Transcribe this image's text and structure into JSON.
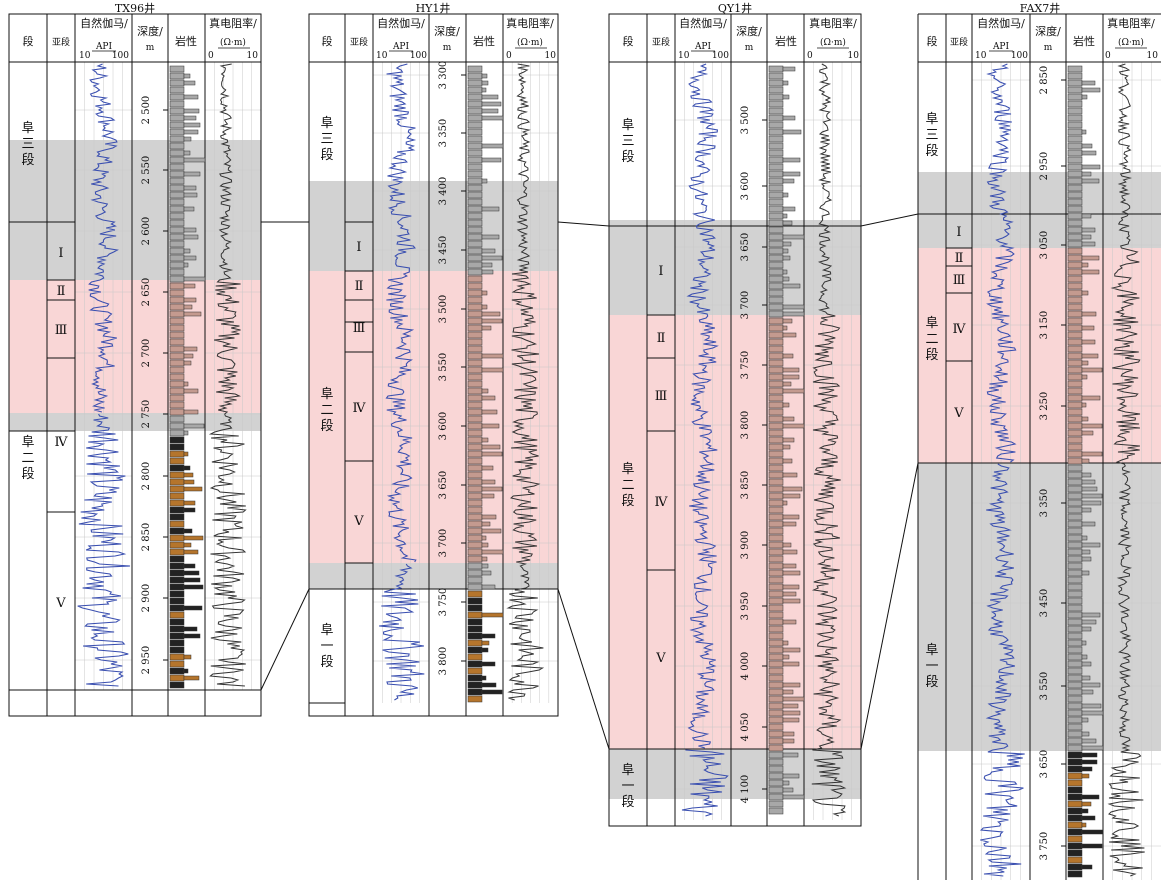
{
  "header": {
    "duan": "段",
    "yaduan": "亚段",
    "gr_title": "自然伽马/",
    "gr_unit": "API",
    "gr_min": "10",
    "gr_max": "100",
    "depth_title": "深度/",
    "depth_unit": "m",
    "lith": "岩性",
    "res_title": "真电阻率/",
    "res_unit": "(Ω·m)",
    "res_min_a": "0",
    "res_min_b": "0",
    "res_max": "10"
  },
  "wells": [
    {
      "name": "TX96井",
      "depth_labels": [
        "2 500",
        "2 550",
        "2 600",
        "2 650",
        "2 700",
        "2 750",
        "2 800",
        "2 850",
        "2 900",
        "2 950"
      ],
      "res_min": "0",
      "zones": [
        "阜三段",
        "阜二段"
      ],
      "subzones": [
        "Ⅰ",
        "Ⅱ",
        "Ⅲ",
        "Ⅳ",
        "Ⅴ"
      ]
    },
    {
      "name": "HY1井",
      "depth_labels": [
        "3 300",
        "3 350",
        "3 400",
        "3 450",
        "3 500",
        "3 550",
        "3 600",
        "3 650",
        "3 700",
        "3 750",
        "3 800"
      ],
      "res_min": "0",
      "zones": [
        "阜三段",
        "阜二段",
        "阜一段"
      ],
      "subzones": [
        "Ⅰ",
        "Ⅱ",
        "Ⅲ",
        "Ⅳ",
        "Ⅴ"
      ]
    },
    {
      "name": "QY1井",
      "depth_labels": [
        "3 500",
        "3 600",
        "3 650",
        "3 700",
        "3 750",
        "3 800",
        "3 850",
        "3 900",
        "3 950",
        "4 000",
        "4 050",
        "4 100"
      ],
      "res_min": "0",
      "zones": [
        "阜三段",
        "阜二段",
        "阜一段"
      ],
      "subzones": [
        "Ⅰ",
        "Ⅱ",
        "Ⅲ",
        "Ⅳ",
        "Ⅴ"
      ]
    },
    {
      "name": "FAX7井",
      "depth_labels": [
        "2 850",
        "2 950",
        "3 050",
        "3 150",
        "3 250",
        "3 350",
        "3 450",
        "3 550",
        "3 650",
        "3 750"
      ],
      "res_min": "0",
      "zones": [
        "阜三段",
        "阜二段",
        "阜一段"
      ],
      "subzones": [
        "Ⅰ",
        "Ⅱ",
        "Ⅲ",
        "Ⅳ",
        "Ⅴ"
      ]
    }
  ],
  "colors": {
    "gray_band": "#d2d2d2",
    "pink_band": "#f9d6d6",
    "gr_curve": "#3a4fb0",
    "gr_curve_light": "#7f86c6",
    "res_curve": "#333333",
    "res_curve_pink": "#8a6a6a",
    "lith_gray": "#a8a8a8",
    "lith_brown": "#c49a8f",
    "lith_dark": "#222222",
    "lith_orange": "#b5752c",
    "grid": "#c8c8c8"
  }
}
